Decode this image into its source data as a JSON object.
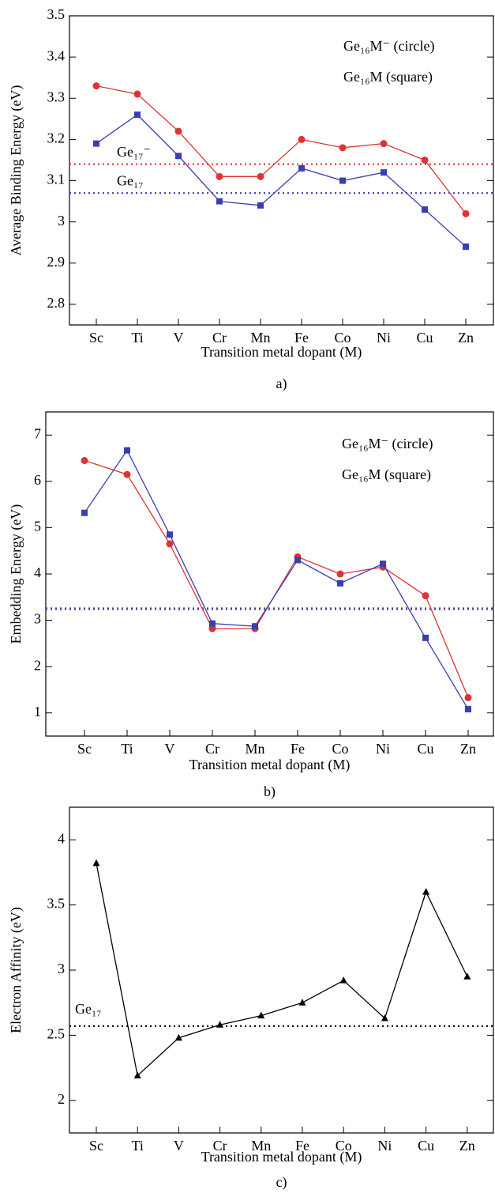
{
  "chart_data": [
    {
      "type": "line",
      "panel_label": "a)",
      "xlabel": "Transition metal dopant (M)",
      "ylabel": "Average Binding Energy (eV)",
      "categories": [
        "Sc",
        "Ti",
        "V",
        "Cr",
        "Mn",
        "Fe",
        "Co",
        "Ni",
        "Cu",
        "Zn"
      ],
      "series": [
        {
          "name": "Ge₁₆M⁻ (circle)",
          "color": "#dd3333",
          "marker": "circle",
          "values": [
            3.33,
            3.31,
            3.22,
            3.11,
            3.11,
            3.2,
            3.18,
            3.19,
            3.15,
            3.02
          ]
        },
        {
          "name": "Ge₁₆M (square)",
          "color": "#3a3fb0",
          "marker": "square",
          "values": [
            3.19,
            3.26,
            3.16,
            3.05,
            3.04,
            3.13,
            3.1,
            3.12,
            3.03,
            2.94
          ]
        }
      ],
      "reference_lines": [
        {
          "label": "Ge₁₇⁻",
          "value": 3.14,
          "color": "#dd3333"
        },
        {
          "label": "Ge₁₇",
          "value": 3.07,
          "color": "#3a3fb0"
        }
      ],
      "ylim": [
        2.75,
        3.5
      ],
      "yticks": [
        2.8,
        2.9,
        3,
        3.1,
        3.2,
        3.3,
        3.4,
        3.5
      ],
      "legend": "upper right",
      "grid": false
    },
    {
      "type": "line",
      "panel_label": "b)",
      "xlabel": "Transition metal dopant (M)",
      "ylabel": "Embedding Energy (eV)",
      "categories": [
        "Sc",
        "Ti",
        "V",
        "Cr",
        "Mn",
        "Fe",
        "Co",
        "Ni",
        "Cu",
        "Zn"
      ],
      "series": [
        {
          "name": "Ge₁₆M⁻ (circle)",
          "color": "#dd3333",
          "marker": "circle",
          "values": [
            6.45,
            6.15,
            4.65,
            2.82,
            2.82,
            4.37,
            4.0,
            4.15,
            3.53,
            1.33
          ]
        },
        {
          "name": "Ge₁₆M (square)",
          "color": "#3a3fb0",
          "marker": "square",
          "values": [
            5.32,
            6.67,
            4.85,
            2.93,
            2.87,
            4.3,
            3.8,
            4.22,
            2.62,
            1.08
          ]
        }
      ],
      "reference_lines": [
        {
          "value": 3.26,
          "color": "#dd3333"
        },
        {
          "value": 3.24,
          "color": "#3a3fb0"
        }
      ],
      "ylim": [
        0.5,
        7.5
      ],
      "yticks": [
        1,
        2,
        3,
        4,
        5,
        6,
        7
      ],
      "legend": "upper right",
      "grid": false
    },
    {
      "type": "line",
      "panel_label": "c)",
      "xlabel": "Transition metal dopant (M)",
      "ylabel": "Electron Affinity (eV)",
      "categories": [
        "Sc",
        "Ti",
        "V",
        "Cr",
        "Mn",
        "Fe",
        "Co",
        "Ni",
        "Cu",
        "Zn"
      ],
      "series": [
        {
          "color": "#000000",
          "marker": "triangle",
          "values": [
            3.82,
            2.19,
            2.48,
            2.58,
            2.65,
            2.75,
            2.92,
            2.63,
            3.6,
            2.95
          ]
        }
      ],
      "reference_lines": [
        {
          "label": "Ge₁₇",
          "value": 2.57,
          "color": "#000000"
        }
      ],
      "ylim": [
        1.75,
        4.25
      ],
      "yticks": [
        2,
        2.5,
        3,
        3.5,
        4
      ],
      "grid": false
    }
  ]
}
